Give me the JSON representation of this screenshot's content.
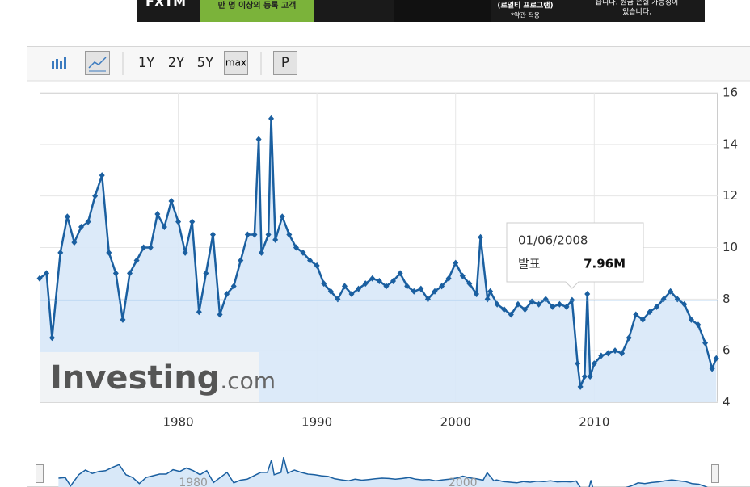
{
  "banner": {
    "brand": "FXTM",
    "line1": "만 명 이상의 등록 고객",
    "line2": "(로열티 프로그램)",
    "line3": "*약관 적용",
    "line4": "습니다. 원금 손실 가능성이",
    "line5": "있습니다."
  },
  "toolbar": {
    "buttons": [
      "1Y",
      "2Y",
      "5Y",
      "max",
      "P"
    ]
  },
  "chart_data": {
    "type": "line",
    "watermark": "Investing",
    "watermark_suffix": ".com",
    "x": [
      1970,
      1970.5,
      1970.9,
      1971.5,
      1972,
      1972.5,
      1973,
      1973.5,
      1974,
      1974.5,
      1975,
      1975.5,
      1976,
      1976.5,
      1977,
      1977.5,
      1978,
      1978.5,
      1979,
      1979.5,
      1980,
      1980.5,
      1981,
      1981.5,
      1982,
      1982.5,
      1983,
      1983.5,
      1984,
      1984.5,
      1985,
      1985.5,
      1985.8,
      1986,
      1986.5,
      1986.7,
      1987,
      1987.5,
      1988,
      1988.5,
      1989,
      1989.5,
      1990,
      1990.5,
      1991,
      1991.5,
      1992,
      1992.5,
      1993,
      1993.5,
      1994,
      1994.5,
      1995,
      1995.5,
      1996,
      1996.5,
      1997,
      1997.5,
      1998,
      1998.5,
      1999,
      1999.5,
      2000,
      2000.5,
      2001,
      2001.5,
      2001.8,
      2002.3,
      2002.5,
      2003,
      2003.5,
      2004,
      2004.5,
      2005,
      2005.5,
      2006,
      2006.5,
      2007,
      2007.5,
      2008,
      2008.4,
      2008.8,
      2009,
      2009.3,
      2009.5,
      2009.7,
      2010,
      2010.5,
      2011,
      2011.5,
      2012,
      2012.5,
      2013,
      2013.5,
      2014,
      2014.5,
      2015,
      2015.5,
      2016,
      2016.5,
      2017,
      2017.5,
      2018,
      2018.5,
      2018.8
    ],
    "series": [
      {
        "color": "#1a5fa0",
        "values": [
          8.8,
          9.0,
          6.5,
          9.8,
          11.2,
          10.2,
          10.8,
          11.0,
          12.0,
          12.8,
          9.8,
          9.0,
          7.2,
          9.0,
          9.5,
          10.0,
          10.0,
          11.3,
          10.8,
          11.8,
          11.0,
          9.8,
          11.0,
          7.5,
          9.0,
          10.5,
          7.4,
          8.2,
          8.5,
          9.5,
          10.5,
          10.5,
          14.2,
          9.8,
          10.5,
          15.0,
          10.3,
          11.2,
          10.5,
          10.0,
          9.8,
          9.5,
          9.3,
          8.6,
          8.3,
          8.0,
          8.5,
          8.2,
          8.4,
          8.6,
          8.8,
          8.7,
          8.5,
          8.7,
          9.0,
          8.5,
          8.3,
          8.4,
          8.0,
          8.3,
          8.5,
          8.8,
          9.4,
          8.9,
          8.6,
          8.2,
          10.4,
          8.0,
          8.3,
          7.8,
          7.6,
          7.4,
          7.8,
          7.6,
          7.9,
          7.8,
          8.0,
          7.7,
          7.8,
          7.7,
          7.96,
          5.5,
          4.6,
          5.0,
          8.2,
          5.0,
          5.5,
          5.8,
          5.9,
          6.0,
          5.9,
          6.5,
          7.4,
          7.2,
          7.5,
          7.7,
          8.0,
          8.3,
          8.0,
          7.8,
          7.2,
          7.0,
          6.3,
          5.3,
          5.7
        ]
      }
    ],
    "xlim": [
      1970,
      2018.9
    ],
    "ylim": [
      4,
      16
    ],
    "xticks": [
      1980,
      1990,
      2000,
      2010
    ],
    "yticks": [
      4,
      6,
      8,
      10,
      12,
      14,
      16
    ],
    "grid": true,
    "tooltip": {
      "x": 2008.4,
      "value": 7.96,
      "date": "01/06/2008",
      "label": "발표",
      "value_label": "7.96M"
    },
    "navigator": {
      "xlim": [
        1968.6,
        2018.9
      ],
      "xticks": [
        1980,
        2000
      ]
    }
  }
}
